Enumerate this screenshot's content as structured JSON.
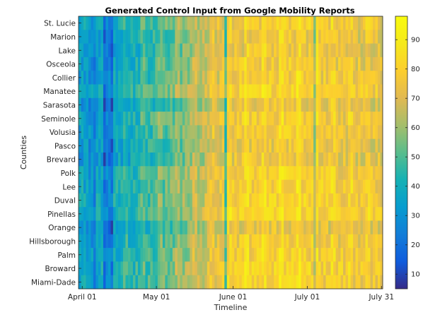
{
  "chart_data": {
    "type": "heatmap",
    "title": "Generated Control Input from Google Mobility Reports",
    "xlabel": "Timeline",
    "ylabel": "Counties",
    "x_ticks": [
      "April 01",
      "May 01",
      "June 01",
      "July 01",
      "July 31"
    ],
    "x_range": [
      "2020-03-31",
      "2020-08-01"
    ],
    "rows": [
      "St. Lucie",
      "Marion",
      "Lake",
      "Osceola",
      "Collier",
      "Manatee",
      "Sarasota",
      "Seminole",
      "Volusia",
      "Pasco",
      "Brevard",
      "Polk",
      "Lee",
      "Duval",
      "Pinellas",
      "Orange",
      "Hillsborough",
      "Palm",
      "Broward",
      "Miami-Dade"
    ],
    "color_scale": {
      "colormap": "parula",
      "min": 5,
      "max": 98,
      "ticks": [
        10,
        20,
        30,
        40,
        50,
        60,
        70,
        80,
        90
      ]
    },
    "value_profile_by_period": [
      {
        "period": "2020-03-31 to 2020-04-10",
        "approx_value": 35
      },
      {
        "period": "2020-04-10 to 2020-05-01",
        "approx_value": 40
      },
      {
        "period": "2020-05-01 to 2020-05-20",
        "approx_value": 55
      },
      {
        "period": "2020-05-20 to 2020-06-10",
        "approx_value": 75
      },
      {
        "period": "2020-06-10 to 2020-07-10",
        "approx_value": 78
      },
      {
        "period": "2020-07-10 to 2020-07-31",
        "approx_value": 73
      }
    ],
    "legend": "colorbar-right",
    "grid": false
  }
}
